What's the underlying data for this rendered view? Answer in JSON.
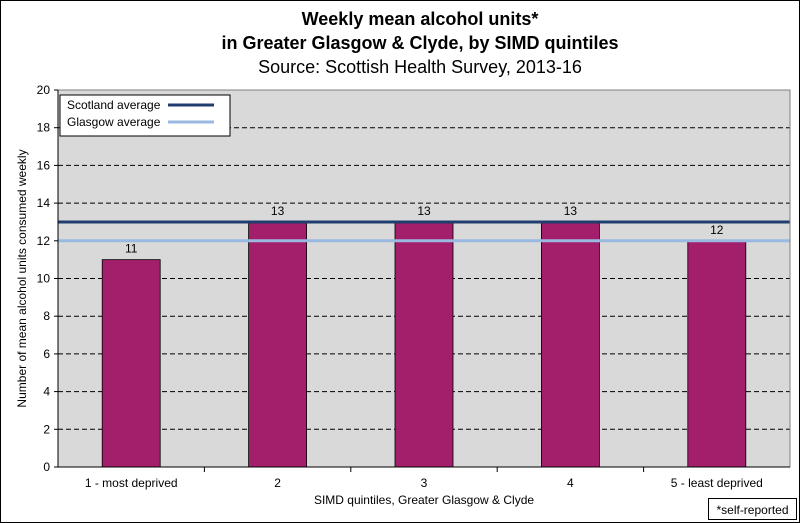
{
  "chart_data": {
    "type": "bar",
    "title_lines": [
      "Weekly mean alcohol units*",
      "in Greater Glasgow & Clyde, by SIMD quintiles"
    ],
    "subtitle": "Source: Scottish Health Survey, 2013-16",
    "categories": [
      "1 - most deprived",
      "2",
      "3",
      "4",
      "5 - least deprived"
    ],
    "values": [
      11,
      13,
      13,
      13,
      12
    ],
    "data_labels": [
      "11",
      "13",
      "13",
      "13",
      "12"
    ],
    "xlabel": "SIMD quintiles, Greater Glasgow & Clyde",
    "ylabel": "Number of mean alcohol units consumed weekly",
    "ylim": [
      0,
      20
    ],
    "yticks": [
      "0",
      "2",
      "4",
      "6",
      "8",
      "10",
      "12",
      "14",
      "16",
      "18",
      "20"
    ],
    "ytick_values": [
      0,
      2,
      4,
      6,
      8,
      10,
      12,
      14,
      16,
      18,
      20
    ],
    "grid": true,
    "reference_lines": [
      {
        "name": "Scotland average",
        "value": 13,
        "color": "#1f3e6e"
      },
      {
        "name": "Glasgow average",
        "value": 12,
        "color": "#99b9e0"
      }
    ],
    "legend_position": "top-left",
    "bar_color": "#a31f6b",
    "plot_background": "#d9d9d9",
    "footnote": "*self-reported"
  }
}
